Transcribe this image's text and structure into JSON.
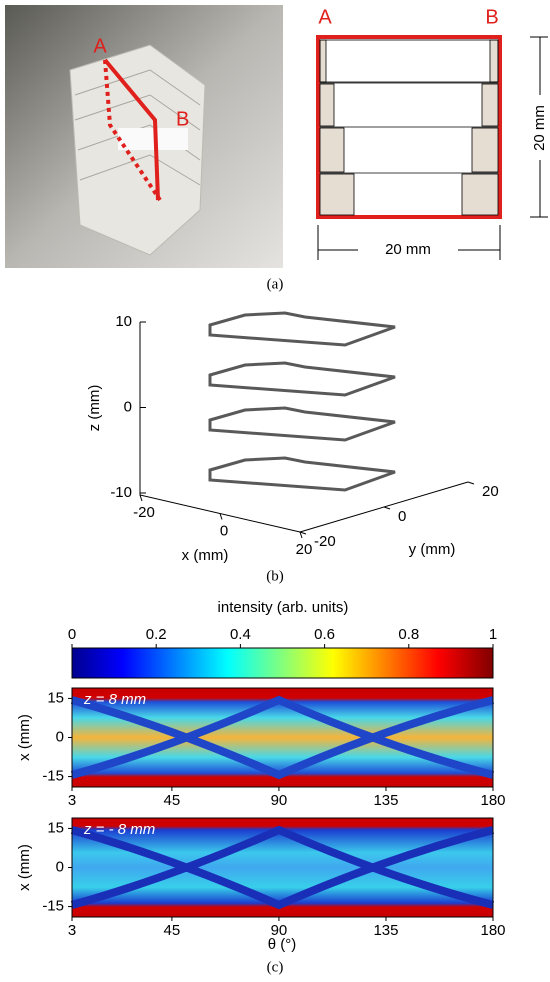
{
  "panel_a": {
    "photo_labels": [
      "A",
      "B"
    ],
    "schematic_labels": [
      "A",
      "B"
    ],
    "height_label": "20 mm",
    "width_label": "20 mm",
    "caption": "(a)"
  },
  "panel_b": {
    "z_label": "z (mm)",
    "x_label": "x (mm)",
    "y_label": "y (mm)",
    "zlim": [
      -10,
      10
    ],
    "zticks": [
      10,
      0,
      -10
    ],
    "xlim": [
      -20,
      20
    ],
    "xticks": [
      -20,
      0,
      20
    ],
    "ylim": [
      -20,
      20
    ],
    "yticks": [
      20,
      0,
      -20
    ],
    "caption": "(b)"
  },
  "panel_c": {
    "colorbar_title": "intensity (arb. units)",
    "colorbar_lim": [
      0,
      1
    ],
    "colorbar_ticks": [
      0,
      0.2,
      0.4,
      0.6,
      0.8,
      1
    ],
    "maps": [
      {
        "annotation": "z = 8 mm"
      },
      {
        "annotation": "z = - 8 mm"
      }
    ],
    "y_label": "x (mm)",
    "x_label": "θ (°)",
    "xlim": [
      3,
      180
    ],
    "xticks": [
      3,
      45,
      90,
      135,
      180
    ],
    "ylim": [
      -19,
      19
    ],
    "yticks": [
      15,
      0,
      -15
    ],
    "caption": "(c)"
  }
}
